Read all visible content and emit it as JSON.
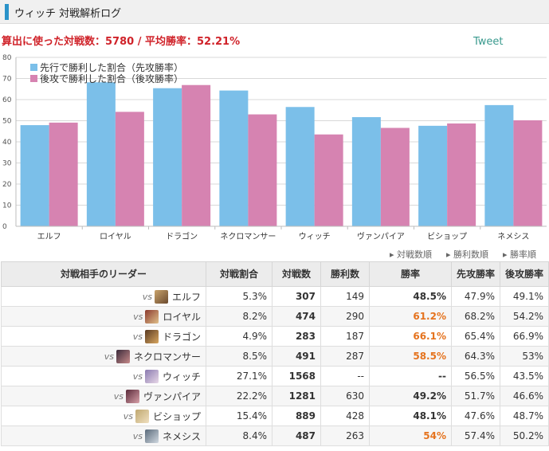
{
  "header": {
    "title": "ウィッチ 対戦解析ログ"
  },
  "stats_line": "算出に使った対戦数：5780 / 平均勝率：52.21%",
  "tweet_label": "Tweet",
  "colors": {
    "first": "#7bbfe9",
    "second": "#d683b1",
    "highlight": "#e5731e",
    "accent": "#2a93c9"
  },
  "chart_data": {
    "type": "bar",
    "categories": [
      "エルフ",
      "ロイヤル",
      "ドラゴン",
      "ネクロマンサー",
      "ウィッチ",
      "ヴァンパイア",
      "ビショップ",
      "ネメシス"
    ],
    "series": [
      {
        "name": "先行で勝利した割合（先攻勝率）",
        "values": [
          47.9,
          68.2,
          65.4,
          64.3,
          56.5,
          51.7,
          47.6,
          57.4
        ]
      },
      {
        "name": "後攻で勝利した割合（後攻勝率）",
        "values": [
          49.1,
          54.2,
          66.9,
          53,
          43.5,
          46.6,
          48.7,
          50.2
        ]
      }
    ],
    "ylim": [
      0,
      80
    ],
    "yticks": [
      0,
      10,
      20,
      30,
      40,
      50,
      60,
      70,
      80
    ],
    "grid": true,
    "legend_position": "top-left"
  },
  "sort_links": [
    "対戦数順",
    "勝利数順",
    "勝率順"
  ],
  "table": {
    "headers": [
      "対戦相手のリーダー",
      "対戦割合",
      "対戦数",
      "勝利数",
      "勝率",
      "先攻勝率",
      "後攻勝率"
    ],
    "rows": [
      {
        "vs": "vs",
        "leader": "エルフ",
        "ratio": "5.3%",
        "count": "307",
        "wins": "149",
        "winrate": "48.5%",
        "first": "47.9%",
        "second": "49.1%",
        "hl": false,
        "avatar": [
          "#c9a36b",
          "#6b4a2e"
        ]
      },
      {
        "vs": "vs",
        "leader": "ロイヤル",
        "ratio": "8.2%",
        "count": "474",
        "wins": "290",
        "winrate": "61.2%",
        "first": "68.2%",
        "second": "54.2%",
        "hl": true,
        "avatar": [
          "#8b3a2e",
          "#e0c08a"
        ]
      },
      {
        "vs": "vs",
        "leader": "ドラゴン",
        "ratio": "4.9%",
        "count": "283",
        "wins": "187",
        "winrate": "66.1%",
        "first": "65.4%",
        "second": "66.9%",
        "hl": true,
        "avatar": [
          "#5a3a22",
          "#d9a760"
        ]
      },
      {
        "vs": "vs",
        "leader": "ネクロマンサー",
        "ratio": "8.5%",
        "count": "491",
        "wins": "287",
        "winrate": "58.5%",
        "first": "64.3%",
        "second": "53%",
        "hl": true,
        "avatar": [
          "#3a2a3a",
          "#c78a8a"
        ]
      },
      {
        "vs": "vs",
        "leader": "ウィッチ",
        "ratio": "27.1%",
        "count": "1568",
        "wins": "--",
        "winrate": "--",
        "first": "56.5%",
        "second": "43.5%",
        "hl": false,
        "avatar": [
          "#8a7ab0",
          "#e8d8e8"
        ]
      },
      {
        "vs": "vs",
        "leader": "ヴァンパイア",
        "ratio": "22.2%",
        "count": "1281",
        "wins": "630",
        "winrate": "49.2%",
        "first": "51.7%",
        "second": "46.6%",
        "hl": false,
        "avatar": [
          "#5a2a3a",
          "#d8a0a8"
        ]
      },
      {
        "vs": "vs",
        "leader": "ビショップ",
        "ratio": "15.4%",
        "count": "889",
        "wins": "428",
        "winrate": "48.1%",
        "first": "47.6%",
        "second": "48.7%",
        "hl": false,
        "avatar": [
          "#c0a870",
          "#f0e0c0"
        ]
      },
      {
        "vs": "vs",
        "leader": "ネメシス",
        "ratio": "8.4%",
        "count": "487",
        "wins": "263",
        "winrate": "54%",
        "first": "57.4%",
        "second": "50.2%",
        "hl": true,
        "avatar": [
          "#5a6a7a",
          "#d0d8e0"
        ]
      }
    ]
  }
}
